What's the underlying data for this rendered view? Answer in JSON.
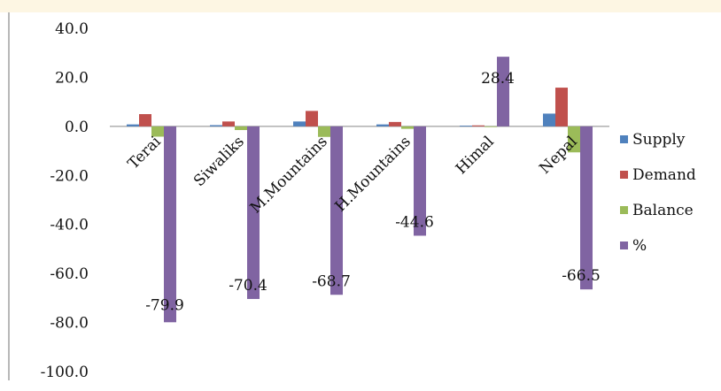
{
  "chart_data": {
    "type": "bar",
    "title": "",
    "xlabel": "",
    "ylabel": "",
    "categories": [
      "Terai",
      "Siwaliks",
      "M.Mountains",
      "H.Mountains",
      "Himal",
      "Nepal"
    ],
    "series": [
      {
        "name": "Supply",
        "color": "#4f81bd",
        "values": [
          0.8,
          0.5,
          2.0,
          0.8,
          0.3,
          5.2
        ]
      },
      {
        "name": "Demand",
        "color": "#c0504d",
        "values": [
          5.0,
          2.0,
          6.3,
          1.8,
          0.4,
          15.8
        ]
      },
      {
        "name": "Balance",
        "color": "#9bbb59",
        "values": [
          -4.2,
          -1.5,
          -4.3,
          -1.0,
          -0.1,
          -10.6
        ]
      },
      {
        "name": "%",
        "color": "#8064a2",
        "values": [
          -79.9,
          -70.4,
          -68.7,
          -44.6,
          28.4,
          -66.5
        ]
      }
    ],
    "data_labels": [
      "-79.9",
      "-70.4",
      "-68.7",
      "-44.6",
      "28.4",
      "-66.5"
    ],
    "ylim": [
      -100,
      40
    ],
    "yticks": [
      "40.0",
      "20.0",
      "0.0",
      "-20.0",
      "-40.0",
      "-60.0",
      "-80.0",
      "-100.0"
    ],
    "ytick_values": [
      40,
      20,
      0,
      -20,
      -40,
      -60,
      -80,
      -100
    ],
    "grid": false,
    "legend_position": "right"
  }
}
